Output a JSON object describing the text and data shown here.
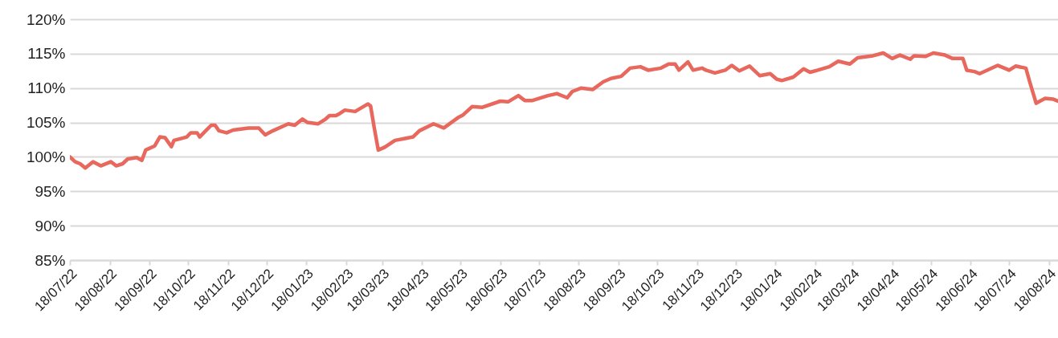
{
  "chart_data": {
    "type": "line",
    "grid": "y",
    "xlim": [
      "2022-07-18",
      "2024-08-25"
    ],
    "xticks": [
      {
        "value": "2022-07-18",
        "label": "18/07/22"
      },
      {
        "value": "2022-08-18",
        "label": "18/08/22"
      },
      {
        "value": "2022-09-18",
        "label": "18/09/22"
      },
      {
        "value": "2022-10-18",
        "label": "18/10/22"
      },
      {
        "value": "2022-11-18",
        "label": "18/11/22"
      },
      {
        "value": "2022-12-18",
        "label": "18/12/22"
      },
      {
        "value": "2023-01-18",
        "label": "18/01/23"
      },
      {
        "value": "2023-02-18",
        "label": "18/02/23"
      },
      {
        "value": "2023-03-18",
        "label": "18/03/23"
      },
      {
        "value": "2023-04-18",
        "label": "18/04/23"
      },
      {
        "value": "2023-05-18",
        "label": "18/05/23"
      },
      {
        "value": "2023-06-18",
        "label": "18/06/23"
      },
      {
        "value": "2023-07-18",
        "label": "18/07/23"
      },
      {
        "value": "2023-08-18",
        "label": "18/08/23"
      },
      {
        "value": "2023-09-18",
        "label": "18/09/23"
      },
      {
        "value": "2023-10-18",
        "label": "18/10/23"
      },
      {
        "value": "2023-11-18",
        "label": "18/11/23"
      },
      {
        "value": "2023-12-18",
        "label": "18/12/23"
      },
      {
        "value": "2024-01-18",
        "label": "18/01/24"
      },
      {
        "value": "2024-02-18",
        "label": "18/02/24"
      },
      {
        "value": "2024-03-18",
        "label": "18/03/24"
      },
      {
        "value": "2024-04-18",
        "label": "18/04/24"
      },
      {
        "value": "2024-05-18",
        "label": "18/05/24"
      },
      {
        "value": "2024-06-18",
        "label": "18/06/24"
      },
      {
        "value": "2024-07-18",
        "label": "18/07/24"
      },
      {
        "value": "2024-08-18",
        "label": "18/08/24"
      }
    ],
    "ylim": [
      85,
      120
    ],
    "yticks": [
      {
        "value": 85,
        "label": "85%"
      },
      {
        "value": 90,
        "label": "90%"
      },
      {
        "value": 95,
        "label": "95%"
      },
      {
        "value": 100,
        "label": "100%"
      },
      {
        "value": 105,
        "label": "105%"
      },
      {
        "value": 110,
        "label": "110%"
      },
      {
        "value": 115,
        "label": "115%"
      },
      {
        "value": 120,
        "label": "120%"
      }
    ],
    "x": [
      "2022-07-18",
      "2022-07-22",
      "2022-07-26",
      "2022-07-30",
      "2022-08-05",
      "2022-08-11",
      "2022-08-19",
      "2022-08-23",
      "2022-08-28",
      "2022-09-01",
      "2022-09-08",
      "2022-09-12",
      "2022-09-15",
      "2022-09-22",
      "2022-09-26",
      "2022-09-30",
      "2022-10-05",
      "2022-10-07",
      "2022-10-17",
      "2022-10-20",
      "2022-10-25",
      "2022-10-27",
      "2022-11-05",
      "2022-11-08",
      "2022-11-11",
      "2022-11-17",
      "2022-11-22",
      "2022-12-04",
      "2022-12-12",
      "2022-12-17",
      "2022-12-23",
      "2023-01-04",
      "2023-01-09",
      "2023-01-15",
      "2023-01-19",
      "2023-01-27",
      "2023-02-02",
      "2023-02-05",
      "2023-02-10",
      "2023-02-13",
      "2023-02-17",
      "2023-02-25",
      "2023-03-07",
      "2023-03-09",
      "2023-03-12",
      "2023-03-15",
      "2023-03-20",
      "2023-03-28",
      "2023-04-11",
      "2023-04-16",
      "2023-04-27",
      "2023-05-05",
      "2023-05-16",
      "2023-05-20",
      "2023-05-27",
      "2023-06-04",
      "2023-06-18",
      "2023-06-24",
      "2023-07-02",
      "2023-07-07",
      "2023-07-13",
      "2023-07-25",
      "2023-08-01",
      "2023-08-09",
      "2023-08-13",
      "2023-08-20",
      "2023-08-29",
      "2023-09-06",
      "2023-09-12",
      "2023-09-20",
      "2023-09-27",
      "2023-10-05",
      "2023-10-11",
      "2023-10-21",
      "2023-10-27",
      "2023-11-01",
      "2023-11-04",
      "2023-11-11",
      "2023-11-15",
      "2023-11-22",
      "2023-11-25",
      "2023-12-02",
      "2023-12-10",
      "2023-12-15",
      "2023-12-21",
      "2023-12-29",
      "2024-01-06",
      "2024-01-14",
      "2024-01-19",
      "2024-01-23",
      "2024-02-01",
      "2024-02-09",
      "2024-02-14",
      "2024-02-20",
      "2024-02-29",
      "2024-03-07",
      "2024-03-16",
      "2024-03-22",
      "2024-04-03",
      "2024-04-11",
      "2024-04-18",
      "2024-04-24",
      "2024-05-02",
      "2024-05-05",
      "2024-05-14",
      "2024-05-20",
      "2024-05-29",
      "2024-06-04",
      "2024-06-12",
      "2024-06-15",
      "2024-06-21",
      "2024-06-25",
      "2024-07-09",
      "2024-07-18",
      "2024-07-23",
      "2024-07-31",
      "2024-08-03",
      "2024-08-08",
      "2024-08-15",
      "2024-08-21",
      "2024-08-25"
    ],
    "series": [
      {
        "color": "#e8685d",
        "values": [
          100.0,
          99.3,
          99.0,
          98.4,
          99.3,
          98.7,
          99.3,
          98.7,
          99.0,
          99.7,
          99.9,
          99.5,
          101.0,
          101.6,
          102.9,
          102.8,
          101.5,
          102.4,
          102.9,
          103.5,
          103.5,
          102.9,
          104.6,
          104.6,
          103.8,
          103.5,
          103.9,
          104.2,
          104.2,
          103.2,
          103.8,
          104.8,
          104.6,
          105.5,
          105.0,
          104.8,
          105.5,
          106.0,
          106.0,
          106.3,
          106.8,
          106.6,
          107.7,
          107.4,
          104.1,
          101.0,
          101.4,
          102.4,
          102.9,
          103.8,
          104.8,
          104.2,
          105.7,
          106.1,
          107.3,
          107.2,
          108.1,
          108.0,
          108.9,
          108.2,
          108.2,
          108.9,
          109.2,
          108.6,
          109.5,
          110.0,
          109.8,
          110.9,
          111.4,
          111.7,
          112.9,
          113.1,
          112.6,
          112.9,
          113.5,
          113.5,
          112.6,
          113.8,
          112.6,
          112.9,
          112.6,
          112.2,
          112.6,
          113.3,
          112.5,
          113.2,
          111.8,
          112.1,
          111.3,
          111.1,
          111.6,
          112.8,
          112.3,
          112.6,
          113.1,
          113.9,
          113.5,
          114.4,
          114.7,
          115.1,
          114.3,
          114.8,
          114.2,
          114.7,
          114.6,
          115.1,
          114.8,
          114.3,
          114.3,
          112.6,
          112.4,
          112.1,
          113.3,
          112.6,
          113.2,
          112.9,
          110.9,
          107.8,
          108.5,
          108.4,
          108.1
        ]
      }
    ]
  }
}
